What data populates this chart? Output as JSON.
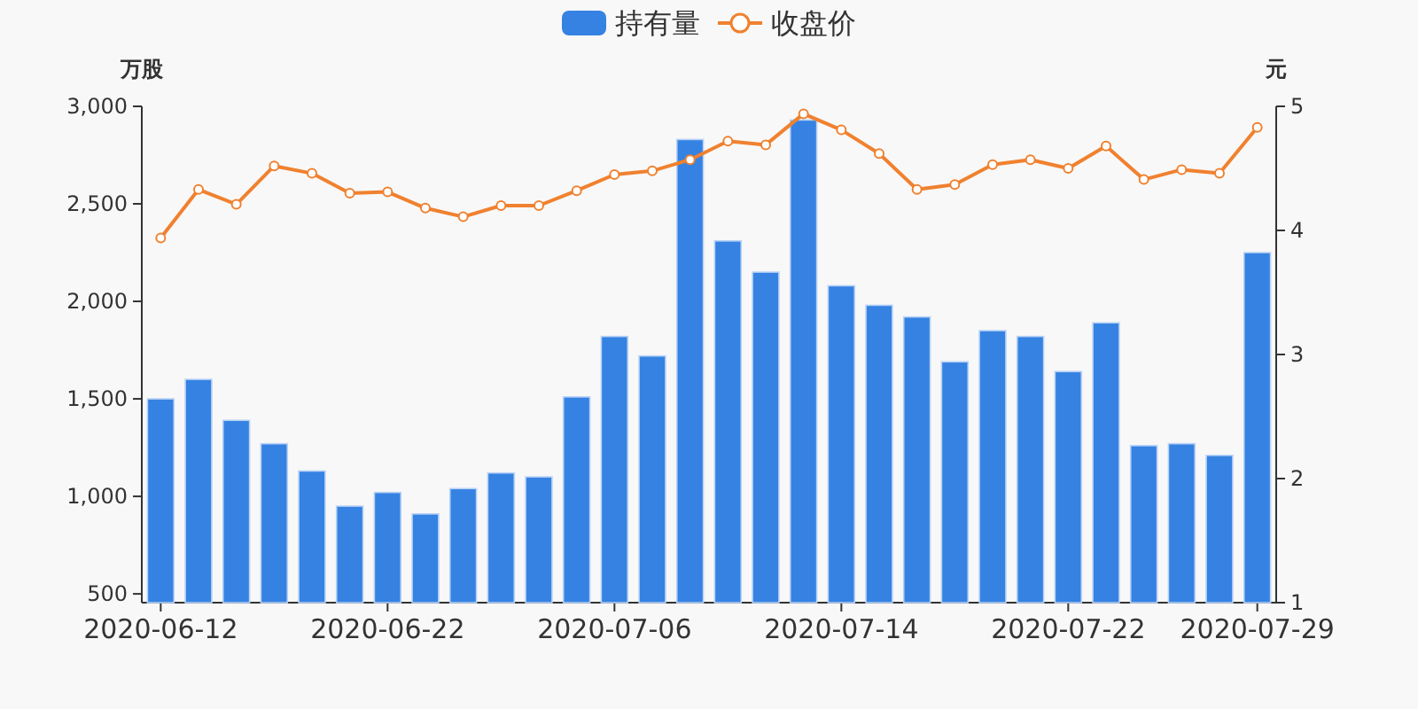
{
  "chart_data": {
    "type": "bar",
    "categories": [
      "2020-06-12",
      null,
      null,
      null,
      null,
      null,
      "2020-06-22",
      null,
      null,
      null,
      null,
      null,
      "2020-07-06",
      null,
      null,
      null,
      null,
      null,
      "2020-07-14",
      null,
      null,
      null,
      null,
      null,
      "2020-07-22",
      null,
      null,
      null,
      null,
      "2020-07-29"
    ],
    "ylabel": "万股",
    "y2label": "元",
    "ylim": [
      455,
      3000
    ],
    "yticks": [
      500,
      {
        "value": 1000,
        "label": "1,000"
      },
      {
        "value": 1500,
        "label": "1,500"
      },
      {
        "value": 2000,
        "label": "2,000"
      },
      {
        "value": 2500,
        "label": "2,500"
      },
      {
        "value": 3000,
        "label": "3,000"
      }
    ],
    "y2lim": [
      1,
      5
    ],
    "y2ticks": [
      1,
      2,
      3,
      4,
      5
    ],
    "legend": "top",
    "series": [
      {
        "name": "持有量",
        "color": "#3582e2",
        "values": [
          1500,
          1600,
          1390,
          1270,
          1130,
          950,
          1020,
          910,
          1040,
          1120,
          1100,
          1510,
          1820,
          1720,
          2830,
          2310,
          2150,
          2930,
          2080,
          1980,
          1920,
          1690,
          1850,
          1820,
          1640,
          1890,
          1260,
          1270,
          1210,
          2250
        ]
      },
      {
        "name": "收盘价",
        "type": "line",
        "axis": "y2",
        "color": "#f0812f",
        "marker": "circle",
        "values": [
          3.94,
          4.33,
          4.21,
          4.52,
          4.46,
          4.3,
          4.31,
          4.18,
          4.11,
          4.2,
          4.2,
          4.32,
          4.45,
          4.48,
          4.57,
          4.72,
          4.69,
          4.94,
          4.81,
          4.62,
          4.33,
          4.37,
          4.53,
          4.57,
          4.5,
          4.68,
          4.41,
          4.49,
          4.46,
          4.83
        ]
      }
    ]
  }
}
